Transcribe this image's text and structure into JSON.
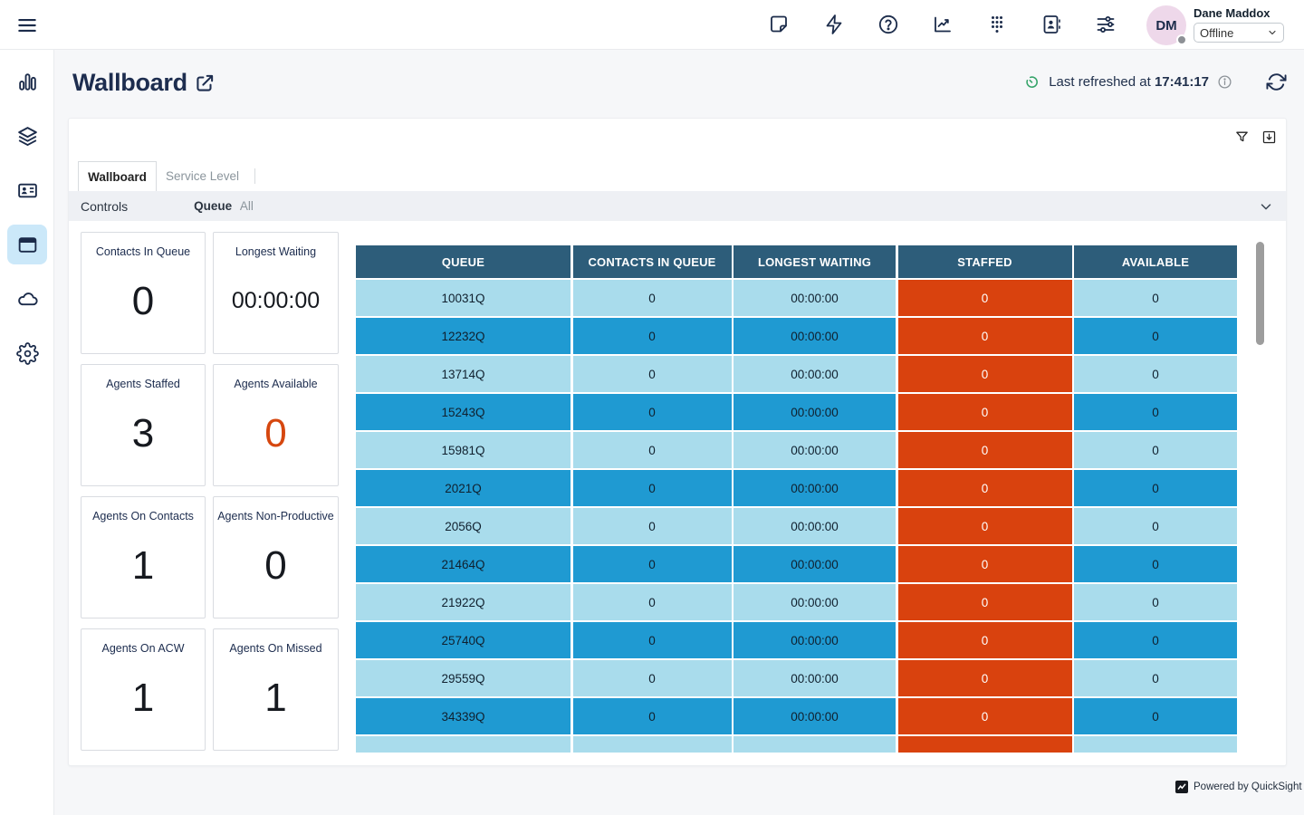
{
  "colors": {
    "navy": "#1b2b4a",
    "accent_orange": "#d6470f",
    "table_header_bg": "#2d5d7a",
    "row_light": "#a9dcec",
    "row_dark": "#1f9ad2",
    "staffed_bg": "#d9420e",
    "selected_sidebar_bg": "#cbe8f9",
    "avatar_bg": "#eed8ea",
    "refresh_green": "#36a46a"
  },
  "topbar": {
    "icons": [
      "note-icon",
      "lightning-icon",
      "help-icon",
      "metrics-chart-icon",
      "dialpad-icon",
      "directory-icon",
      "sliders-icon"
    ],
    "user": {
      "initials": "DM",
      "name": "Dane Maddox",
      "status": "Offline"
    }
  },
  "sidebar": {
    "items": [
      {
        "name": "metrics",
        "icon": "bar-chart-icon",
        "selected": false
      },
      {
        "name": "queues",
        "icon": "layers-icon",
        "selected": false
      },
      {
        "name": "contacts",
        "icon": "id-card-icon",
        "selected": false
      },
      {
        "name": "wallboard",
        "icon": "browser-window-icon",
        "selected": true
      },
      {
        "name": "cloud",
        "icon": "cloud-icon",
        "selected": false
      },
      {
        "name": "settings",
        "icon": "gear-icon",
        "selected": false
      }
    ]
  },
  "header": {
    "title": "Wallboard",
    "last_refreshed_prefix": "Last refreshed at ",
    "last_refreshed_time": "17:41:17"
  },
  "panel": {
    "tabs": [
      {
        "label": "Wallboard",
        "active": true
      },
      {
        "label": "Service Level",
        "active": false
      }
    ],
    "controls": {
      "label": "Controls",
      "queue_label": "Queue",
      "queue_value": "All"
    },
    "kpis": [
      {
        "label": "Contacts In Queue",
        "value": "0",
        "small": false,
        "accent": false
      },
      {
        "label": "Longest Waiting",
        "value": "00:00:00",
        "small": true,
        "accent": false
      },
      {
        "label": "Agents Staffed",
        "value": "3",
        "small": false,
        "accent": false
      },
      {
        "label": "Agents Available",
        "value": "0",
        "small": false,
        "accent": true
      },
      {
        "label": "Agents On Contacts",
        "value": "1",
        "small": false,
        "accent": false
      },
      {
        "label": "Agents Non-Productive",
        "value": "0",
        "small": false,
        "accent": false
      },
      {
        "label": "Agents On ACW",
        "value": "1",
        "small": false,
        "accent": false
      },
      {
        "label": "Agents On Missed",
        "value": "1",
        "small": false,
        "accent": false
      }
    ],
    "table": {
      "columns": [
        "QUEUE",
        "CONTACTS IN QUEUE",
        "LONGEST WAITING",
        "STAFFED",
        "AVAILABLE"
      ],
      "rows": [
        {
          "queue": "10031Q",
          "contacts_in_queue": "0",
          "longest_waiting": "00:00:00",
          "staffed": "0",
          "available": "0"
        },
        {
          "queue": "12232Q",
          "contacts_in_queue": "0",
          "longest_waiting": "00:00:00",
          "staffed": "0",
          "available": "0"
        },
        {
          "queue": "13714Q",
          "contacts_in_queue": "0",
          "longest_waiting": "00:00:00",
          "staffed": "0",
          "available": "0"
        },
        {
          "queue": "15243Q",
          "contacts_in_queue": "0",
          "longest_waiting": "00:00:00",
          "staffed": "0",
          "available": "0"
        },
        {
          "queue": "15981Q",
          "contacts_in_queue": "0",
          "longest_waiting": "00:00:00",
          "staffed": "0",
          "available": "0"
        },
        {
          "queue": "2021Q",
          "contacts_in_queue": "0",
          "longest_waiting": "00:00:00",
          "staffed": "0",
          "available": "0"
        },
        {
          "queue": "2056Q",
          "contacts_in_queue": "0",
          "longest_waiting": "00:00:00",
          "staffed": "0",
          "available": "0"
        },
        {
          "queue": "21464Q",
          "contacts_in_queue": "0",
          "longest_waiting": "00:00:00",
          "staffed": "0",
          "available": "0"
        },
        {
          "queue": "21922Q",
          "contacts_in_queue": "0",
          "longest_waiting": "00:00:00",
          "staffed": "0",
          "available": "0"
        },
        {
          "queue": "25740Q",
          "contacts_in_queue": "0",
          "longest_waiting": "00:00:00",
          "staffed": "0",
          "available": "0"
        },
        {
          "queue": "29559Q",
          "contacts_in_queue": "0",
          "longest_waiting": "00:00:00",
          "staffed": "0",
          "available": "0"
        },
        {
          "queue": "34339Q",
          "contacts_in_queue": "0",
          "longest_waiting": "00:00:00",
          "staffed": "0",
          "available": "0"
        },
        {
          "queue": "",
          "contacts_in_queue": "",
          "longest_waiting": "",
          "staffed": "",
          "available": "",
          "partial": true
        }
      ]
    },
    "attribution": "Powered by QuickSight"
  }
}
